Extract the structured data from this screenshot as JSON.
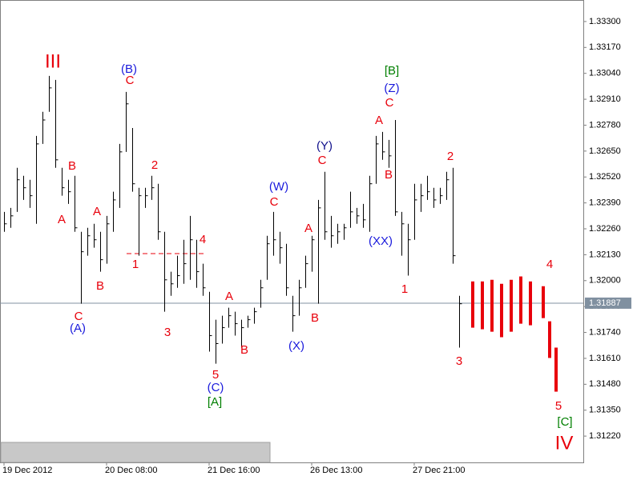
{
  "chart_data": {
    "type": "ohlc",
    "categories": [
      "19 Dec 2012",
      null,
      null,
      null,
      null,
      null,
      null,
      null,
      null,
      null,
      null,
      null,
      null,
      null,
      null,
      null,
      "20 Dec 08:00",
      null,
      null,
      null,
      null,
      null,
      null,
      null,
      null,
      null,
      null,
      null,
      null,
      null,
      null,
      null,
      "21 Dec 16:00",
      null,
      null,
      null,
      null,
      null,
      null,
      null,
      null,
      null,
      null,
      null,
      null,
      null,
      null,
      null,
      "26 Dec 13:00",
      null,
      null,
      null,
      null,
      null,
      null,
      null,
      null,
      null,
      null,
      null,
      null,
      null,
      null,
      null,
      "27 Dec 21:00",
      null,
      null,
      null,
      null,
      null,
      null,
      null
    ],
    "high": [
      1.32345,
      1.32365,
      1.32566,
      1.32526,
      1.32506,
      1.32726,
      1.32847,
      1.33027,
      1.33007,
      1.32566,
      1.32506,
      1.32526,
      1.32245,
      1.32265,
      1.32285,
      1.32245,
      1.32325,
      1.32446,
      1.32686,
      1.32947,
      1.32766,
      1.32466,
      1.32466,
      1.32526,
      1.32486,
      1.32245,
      1.32045,
      1.32125,
      1.32205,
      1.32325,
      1.32205,
      1.32085,
      1.31944,
      1.31804,
      1.31824,
      1.31864,
      1.31844,
      1.31804,
      1.31824,
      1.31864,
      1.32004,
      1.32225,
      1.32345,
      1.32245,
      1.32185,
      1.31924,
      1.32004,
      1.32125,
      1.32225,
      1.32405,
      1.32546,
      1.32325,
      1.32285,
      1.32285,
      1.32446,
      1.32365,
      1.32385,
      1.32526,
      1.32726,
      1.32746,
      1.32706,
      1.32806,
      1.32345,
      1.32285,
      1.32486,
      1.32486,
      1.32526,
      1.32466,
      1.32466,
      1.32546,
      1.32566,
      1.31924
    ],
    "low": [
      1.32245,
      1.32265,
      1.32345,
      1.32405,
      1.32365,
      1.32285,
      1.32686,
      1.32847,
      1.32566,
      1.32426,
      1.32385,
      1.32245,
      1.31884,
      1.32125,
      1.32165,
      1.32045,
      1.32085,
      1.32245,
      1.32365,
      1.32646,
      1.32446,
      1.32125,
      1.32365,
      1.32405,
      1.32205,
      1.31844,
      1.31924,
      1.31964,
      1.31984,
      1.32004,
      1.31964,
      1.31924,
      1.31644,
      1.31583,
      1.31684,
      1.31764,
      1.31724,
      1.31664,
      1.31764,
      1.31784,
      1.31864,
      1.32004,
      1.32125,
      1.32085,
      1.31924,
      1.31744,
      1.31824,
      1.31964,
      1.32045,
      1.31884,
      1.32205,
      1.32165,
      1.32185,
      1.32205,
      1.32265,
      1.32285,
      1.32265,
      1.32245,
      1.32486,
      1.32606,
      1.32566,
      1.32325,
      1.32125,
      1.32025,
      1.32205,
      1.32345,
      1.32405,
      1.32365,
      1.32385,
      1.32405,
      1.32085,
      1.31664
    ],
    "close": [
      1.32285,
      1.32325,
      1.32506,
      1.32466,
      1.32426,
      1.32686,
      1.32806,
      1.32967,
      1.32606,
      1.32466,
      1.32446,
      1.32265,
      1.32145,
      1.32225,
      1.32205,
      1.32105,
      1.32285,
      1.32405,
      1.32646,
      1.32887,
      1.32486,
      1.32426,
      1.32426,
      1.32466,
      1.32245,
      1.32004,
      1.31984,
      1.32025,
      1.32085,
      1.32205,
      1.32045,
      1.31964,
      1.31724,
      1.31684,
      1.31764,
      1.31824,
      1.31784,
      1.31764,
      1.31804,
      1.31844,
      1.31964,
      1.32185,
      1.32205,
      1.32165,
      1.31964,
      1.31824,
      1.31964,
      1.32085,
      1.32205,
      1.32365,
      1.32245,
      1.32225,
      1.32245,
      1.32265,
      1.32345,
      1.32325,
      1.32305,
      1.32486,
      1.32686,
      1.32646,
      1.32626,
      1.32345,
      1.32285,
      1.32205,
      1.32405,
      1.32426,
      1.32446,
      1.32405,
      1.32426,
      1.32506,
      1.32125,
      1.31884
    ],
    "color": "#000000",
    "forecast": {
      "high": [
        1.31996,
        1.31996,
        1.32004,
        1.31984,
        1.32004,
        1.32021,
        1.31996,
        1.31972,
        1.31796,
        1.31664
      ],
      "low": [
        1.31764,
        1.31756,
        1.31744,
        1.31716,
        1.31744,
        1.31784,
        1.31776,
        1.31812,
        1.31612,
        1.31443
      ],
      "color": "#e8000b"
    },
    "current_price": {
      "value": 1.31887,
      "label": "1.31887"
    },
    "ylim": [
      1.31088,
      1.33408
    ],
    "yticks": [
      {
        "value": 1.333,
        "label": "1.33300"
      },
      {
        "value": 1.3317,
        "label": "1.33170"
      },
      {
        "value": 1.3304,
        "label": "1.33040"
      },
      {
        "value": 1.3291,
        "label": "1.32910"
      },
      {
        "value": 1.3278,
        "label": "1.32780"
      },
      {
        "value": 1.3265,
        "label": "1.32650"
      },
      {
        "value": 1.3252,
        "label": "1.32520"
      },
      {
        "value": 1.3239,
        "label": "1.32390"
      },
      {
        "value": 1.3226,
        "label": "1.32260"
      },
      {
        "value": 1.3213,
        "label": "1.32130"
      },
      {
        "value": 1.32,
        "label": "1.32000"
      },
      {
        "value": 1.3187,
        "label": "1.31870"
      },
      {
        "value": 1.3174,
        "label": "1.31740"
      },
      {
        "value": 1.3161,
        "label": "1.31610"
      },
      {
        "value": 1.3148,
        "label": "1.31480"
      },
      {
        "value": 1.3135,
        "label": "1.31350"
      },
      {
        "value": 1.3122,
        "label": "1.31220"
      }
    ],
    "annotations": [
      {
        "text": "III",
        "color": "#e8000b"
      },
      {
        "text": "(B)",
        "color": "#1a1adc"
      },
      {
        "text": "C",
        "color": "#e8000b"
      },
      {
        "text": "B",
        "color": "#e8000b"
      },
      {
        "text": "A",
        "color": "#e8000b"
      },
      {
        "text": "A",
        "color": "#e8000b"
      },
      {
        "text": "2",
        "color": "#e8000b"
      },
      {
        "text": "1",
        "color": "#e8000b"
      },
      {
        "text": "C",
        "color": "#e8000b"
      },
      {
        "text": "(A)",
        "color": "#1a1adc"
      },
      {
        "text": "B",
        "color": "#e8000b"
      },
      {
        "text": "3",
        "color": "#e8000b"
      },
      {
        "text": "4",
        "color": "#e8000b"
      },
      {
        "text": "A",
        "color": "#e8000b"
      },
      {
        "text": "B",
        "color": "#e8000b"
      },
      {
        "text": "5",
        "color": "#e8000b"
      },
      {
        "text": "(C)",
        "color": "#1a1adc"
      },
      {
        "text": "[A]",
        "color": "#007f00"
      },
      {
        "text": "(W)",
        "color": "#1a1adc"
      },
      {
        "text": "C",
        "color": "#e8000b"
      },
      {
        "text": "A",
        "color": "#e8000b"
      },
      {
        "text": "B",
        "color": "#e8000b"
      },
      {
        "text": "(X)",
        "color": "#1a1adc"
      },
      {
        "text": "(Y)",
        "color": "#10108c"
      },
      {
        "text": "C",
        "color": "#e8000b"
      },
      {
        "text": "[B]",
        "color": "#007f00"
      },
      {
        "text": "(Z)",
        "color": "#1a1adc"
      },
      {
        "text": "C",
        "color": "#e8000b"
      },
      {
        "text": "A",
        "color": "#e8000b"
      },
      {
        "text": "B",
        "color": "#e8000b"
      },
      {
        "text": "(XX)",
        "color": "#1a1adc"
      },
      {
        "text": "1",
        "color": "#e8000b"
      },
      {
        "text": "2",
        "color": "#e8000b"
      },
      {
        "text": "3",
        "color": "#e8000b"
      },
      {
        "text": "4",
        "color": "#e8000b"
      },
      {
        "text": "5",
        "color": "#e8000b"
      },
      {
        "text": "[C]",
        "color": "#007f00"
      },
      {
        "text": "IV",
        "color": "#e8000b"
      }
    ]
  }
}
